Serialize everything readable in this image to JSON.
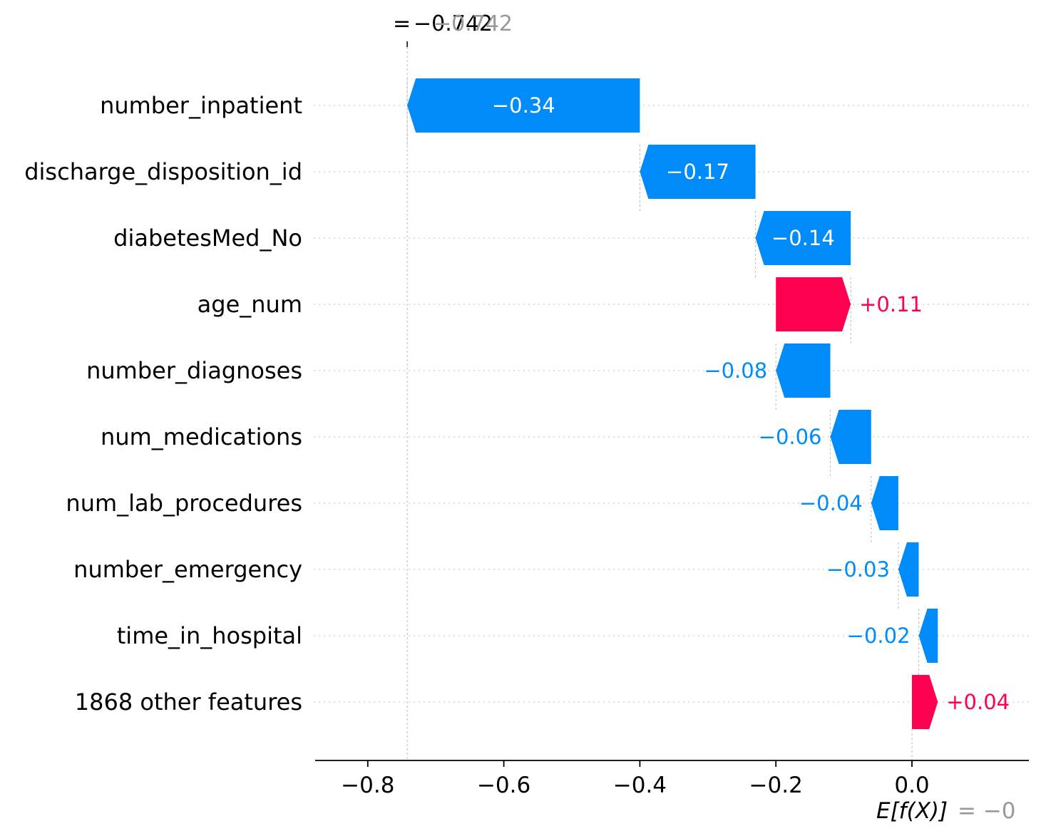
{
  "chart_data": {
    "type": "waterfall",
    "base_value_label": "E[f(X)]",
    "base_value_text": "= −0",
    "base_value": 0.0,
    "final_value_prefix": "=",
    "final_value_text": "−0.742",
    "final_value_overlap_text": "−0.742",
    "final_value": -0.742,
    "features": [
      {
        "name": "number_inpatient",
        "value": -0.34,
        "label": "−0.34",
        "start": -0.4,
        "end": -0.742
      },
      {
        "name": "discharge_disposition_id",
        "value": -0.17,
        "label": "−0.17",
        "start": -0.23,
        "end": -0.4
      },
      {
        "name": "diabetesMed_No",
        "value": -0.14,
        "label": "−0.14",
        "start": -0.09,
        "end": -0.23
      },
      {
        "name": "age_num",
        "value": 0.11,
        "label": "+0.11",
        "start": -0.2,
        "end": -0.09
      },
      {
        "name": "number_diagnoses",
        "value": -0.08,
        "label": "−0.08",
        "start": -0.12,
        "end": -0.2
      },
      {
        "name": "num_medications",
        "value": -0.06,
        "label": "−0.06",
        "start": -0.06,
        "end": -0.12
      },
      {
        "name": "num_lab_procedures",
        "value": -0.04,
        "label": "−0.04",
        "start": -0.02,
        "end": -0.06
      },
      {
        "name": "number_emergency",
        "value": -0.03,
        "label": "−0.03",
        "start": 0.01,
        "end": -0.02
      },
      {
        "name": "time_in_hospital",
        "value": -0.02,
        "label": "−0.02",
        "start": 0.038,
        "end": 0.01
      },
      {
        "name": "1868 other features",
        "value": 0.04,
        "label": "+0.04",
        "start": 0.0,
        "end": 0.038
      }
    ],
    "xlim": [
      -0.88,
      0.17
    ],
    "xticks": [
      -0.8,
      -0.6,
      -0.4,
      -0.2,
      0.0
    ],
    "xtick_labels": [
      "−0.8",
      "−0.6",
      "−0.4",
      "−0.2",
      "0.0"
    ],
    "colors": {
      "negative": "#008bfb",
      "positive": "#ff0051",
      "grey": "#999999",
      "grid": "#cccccc",
      "axis": "#000000"
    }
  }
}
